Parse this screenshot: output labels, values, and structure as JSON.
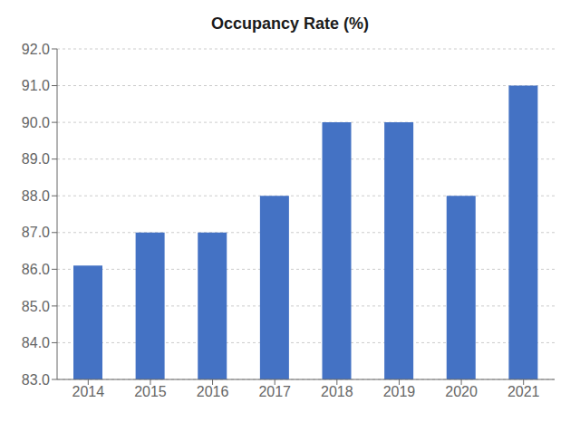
{
  "chart_data": {
    "type": "bar",
    "title": "Occupancy Rate (%)",
    "categories": [
      "2014",
      "2015",
      "2016",
      "2017",
      "2018",
      "2019",
      "2020",
      "2021"
    ],
    "values": [
      86.1,
      87.0,
      87.0,
      88.0,
      90.0,
      90.0,
      88.0,
      91.0
    ],
    "color": "#4472c4",
    "ylim": [
      83.0,
      92.0
    ],
    "yticks": [
      {
        "value": 83.0,
        "label": "83.0"
      },
      {
        "value": 84.0,
        "label": "84.0"
      },
      {
        "value": 85.0,
        "label": "85.0"
      },
      {
        "value": 86.0,
        "label": "86.0"
      },
      {
        "value": 87.0,
        "label": "87.0"
      },
      {
        "value": 88.0,
        "label": "88.0"
      },
      {
        "value": 89.0,
        "label": "89.0"
      },
      {
        "value": 90.0,
        "label": "90.0"
      },
      {
        "value": 91.0,
        "label": "91.0"
      },
      {
        "value": 92.0,
        "label": "92.0"
      }
    ],
    "grid": true
  }
}
